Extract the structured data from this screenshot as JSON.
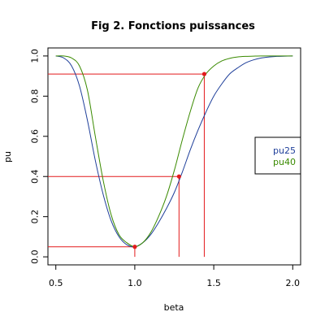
{
  "chart_data": {
    "type": "line",
    "title": "Fig 2. Fonctions puissances",
    "xlabel": "beta",
    "ylabel": "pu",
    "xlim": [
      0.45,
      2.05
    ],
    "ylim": [
      -0.04,
      1.04
    ],
    "x_ticks": [
      0.5,
      1.0,
      1.5,
      2.0
    ],
    "x_tick_labels": [
      "0.5",
      "1.0",
      "1.5",
      "2.0"
    ],
    "y_ticks": [
      0.0,
      0.2,
      0.4,
      0.6,
      0.8,
      1.0
    ],
    "y_tick_labels": [
      "0.0",
      "0.2",
      "0.4",
      "0.6",
      "0.8",
      "1.0"
    ],
    "grid": false,
    "legend_position": "right",
    "series": [
      {
        "name": "pu25",
        "color": "#1f3f9a",
        "x": [
          0.5,
          0.55,
          0.6,
          0.65,
          0.7,
          0.75,
          0.8,
          0.85,
          0.9,
          0.95,
          1.0,
          1.05,
          1.1,
          1.15,
          1.2,
          1.25,
          1.3,
          1.35,
          1.4,
          1.45,
          1.5,
          1.55,
          1.6,
          1.65,
          1.7,
          1.75,
          1.8,
          1.85,
          1.9,
          1.95,
          2.0
        ],
        "y": [
          1.0,
          0.99,
          0.95,
          0.85,
          0.68,
          0.48,
          0.31,
          0.18,
          0.1,
          0.06,
          0.05,
          0.07,
          0.11,
          0.17,
          0.24,
          0.32,
          0.42,
          0.53,
          0.63,
          0.72,
          0.8,
          0.86,
          0.91,
          0.94,
          0.965,
          0.98,
          0.99,
          0.995,
          0.998,
          0.999,
          1.0
        ]
      },
      {
        "name": "pu40",
        "color": "#3a8a00",
        "x": [
          0.5,
          0.55,
          0.6,
          0.65,
          0.7,
          0.75,
          0.8,
          0.85,
          0.9,
          0.95,
          1.0,
          1.05,
          1.1,
          1.15,
          1.2,
          1.25,
          1.3,
          1.35,
          1.4,
          1.45,
          1.5,
          1.55,
          1.6,
          1.65,
          1.7,
          1.75,
          1.8,
          1.85,
          1.9,
          1.95,
          2.0
        ],
        "y": [
          1.0,
          1.0,
          0.99,
          0.95,
          0.83,
          0.6,
          0.38,
          0.21,
          0.11,
          0.07,
          0.05,
          0.07,
          0.12,
          0.2,
          0.3,
          0.43,
          0.58,
          0.72,
          0.84,
          0.91,
          0.95,
          0.975,
          0.988,
          0.995,
          0.998,
          0.999,
          1.0,
          1.0,
          1.0,
          1.0,
          1.0
        ]
      }
    ],
    "markers": [
      {
        "x": 1.0,
        "y": 0.05,
        "color": "#e31a1c"
      },
      {
        "x": 1.28,
        "y": 0.4,
        "color": "#e31a1c"
      },
      {
        "x": 1.44,
        "y": 0.91,
        "color": "#e31a1c"
      }
    ],
    "reference_lines": {
      "color": "#e31a1c"
    },
    "legend": {
      "entries": [
        {
          "label": "pu25",
          "color": "#1f3f9a"
        },
        {
          "label": "pu40",
          "color": "#3a8a00"
        }
      ]
    }
  }
}
